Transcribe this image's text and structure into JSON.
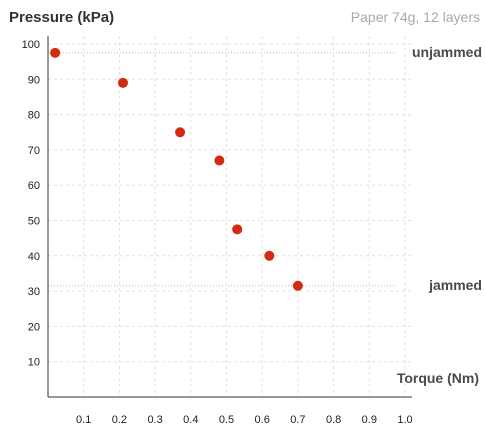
{
  "chart_data": {
    "type": "scatter",
    "title": "Pressure (kPa)",
    "subtitle": "Paper 74g, 12 layers",
    "xlabel": "Torque (Nm)",
    "ylabel": "",
    "xlim": [
      0,
      1.0
    ],
    "ylim": [
      0,
      100
    ],
    "x_ticks": [
      "0.1",
      "0.2",
      "0.3",
      "0.4",
      "0.5",
      "0.6",
      "0.7",
      "0.8",
      "0.9",
      "1.0"
    ],
    "y_ticks": [
      "10",
      "20",
      "30",
      "40",
      "50",
      "60",
      "70",
      "80",
      "90",
      "100"
    ],
    "grid": true,
    "series": [
      {
        "color": "#d42a12",
        "points": [
          {
            "x": 0.02,
            "y": 97.5
          },
          {
            "x": 0.21,
            "y": 89
          },
          {
            "x": 0.37,
            "y": 75
          },
          {
            "x": 0.48,
            "y": 67
          },
          {
            "x": 0.53,
            "y": 47.5
          },
          {
            "x": 0.62,
            "y": 40
          },
          {
            "x": 0.7,
            "y": 31.5
          }
        ]
      }
    ],
    "reference_lines": [
      {
        "y": 97.5,
        "label": "unjammed"
      },
      {
        "y": 31.5,
        "label": "jammed"
      }
    ]
  }
}
